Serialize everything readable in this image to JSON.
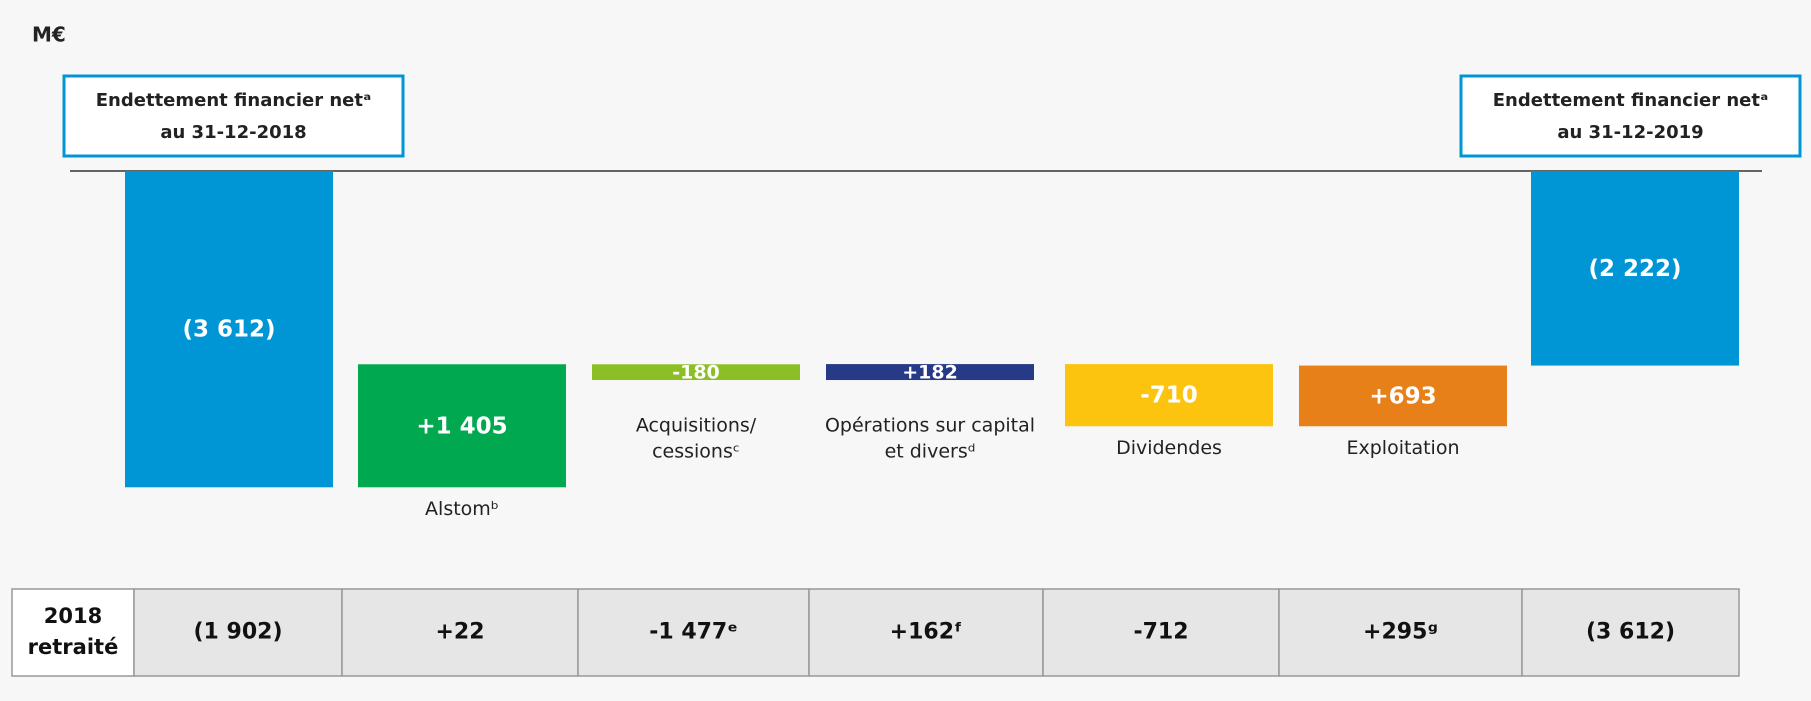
{
  "chart_data": {
    "type": "waterfall",
    "unit": "M€",
    "categories": [
      [
        "Endettement financier netᵃ",
        "au 31-12-2018"
      ],
      [
        "Alstomᵇ"
      ],
      [
        "Acquisitions/",
        "cessionsᶜ"
      ],
      [
        "Opérations sur capital",
        "et diversᵈ"
      ],
      [
        "Dividendes"
      ],
      [
        "Exploitation"
      ],
      [
        "Endettement financier netᵃ",
        "au 31-12-2019"
      ]
    ],
    "values": [
      -3612,
      1405,
      -180,
      182,
      -710,
      693,
      -2222
    ],
    "value_labels": [
      "(3 612)",
      "+1 405",
      "-180",
      "+182",
      "-710",
      "+693",
      "(2 222)"
    ],
    "totals": [
      true,
      false,
      false,
      false,
      false,
      false,
      true
    ],
    "colors": [
      "#0096d6",
      "#00a94f",
      "#8cbf26",
      "#263a87",
      "#fcc30f",
      "#e8801a",
      "#0096d6"
    ],
    "ylim": [
      -3700,
      0
    ],
    "comparison": {
      "header": [
        "2018",
        "retraité"
      ],
      "cells": [
        "(1 902)",
        "+22",
        "-1 477ᵉ",
        "+162ᶠ",
        "-712",
        "+295ᵍ",
        "(3 612)"
      ]
    }
  }
}
